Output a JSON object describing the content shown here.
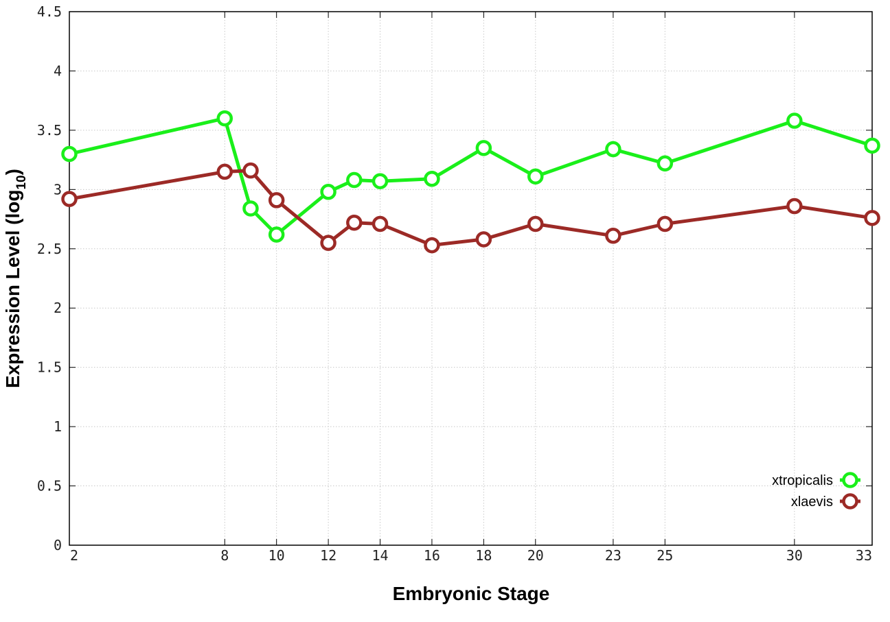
{
  "chart_data": {
    "type": "line",
    "xlabel": "Embryonic Stage",
    "ylabel_main": "Expression Level (log",
    "ylabel_sub": "10",
    "ylabel_close": ")",
    "xlim": [
      2,
      33
    ],
    "ylim": [
      0,
      4.5
    ],
    "yticks": [
      "0",
      "0.5",
      "1",
      "1.5",
      "2",
      "2.5",
      "3",
      "3.5",
      "4",
      "4.5"
    ],
    "x_ticks": [
      2,
      8,
      10,
      12,
      14,
      16,
      18,
      20,
      23,
      25,
      30,
      33
    ],
    "x_tick_labels": [
      "2",
      "8",
      "10",
      "12",
      "14",
      "16",
      "18",
      "20",
      "23",
      "25",
      "30",
      "33"
    ],
    "grid": true,
    "legend_position": "bottom-right",
    "series": [
      {
        "name": "xtropicalis",
        "color": "#1aef1a",
        "x": [
          2,
          8,
          9,
          10,
          12,
          13,
          14,
          16,
          18,
          20,
          23,
          25,
          30,
          33
        ],
        "y": [
          3.3,
          3.6,
          2.84,
          2.62,
          2.98,
          3.08,
          3.07,
          3.09,
          3.35,
          3.11,
          3.34,
          3.22,
          3.58,
          3.37
        ]
      },
      {
        "name": "xlaevis",
        "color": "#9c2a26",
        "x": [
          2,
          8,
          9,
          10,
          12,
          13,
          14,
          16,
          18,
          20,
          23,
          25,
          30,
          33
        ],
        "y": [
          2.92,
          3.15,
          3.16,
          2.91,
          2.55,
          2.72,
          2.71,
          2.53,
          2.58,
          2.71,
          2.61,
          2.71,
          2.86,
          2.76
        ]
      }
    ]
  }
}
